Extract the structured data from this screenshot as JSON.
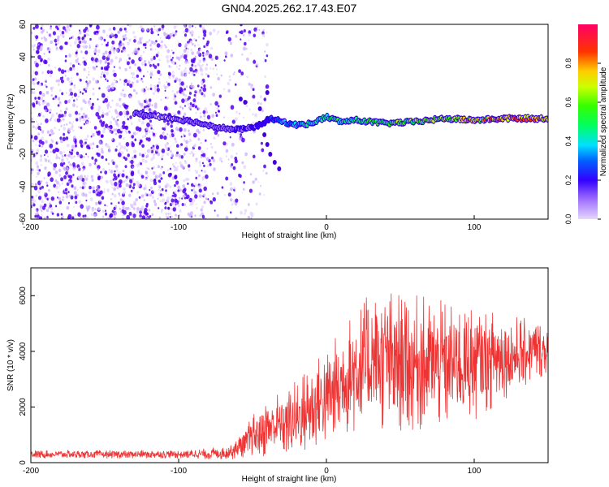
{
  "figure": {
    "title": "GN04.2025.262.17.43.E07"
  },
  "chart_data": [
    {
      "type": "heatmap",
      "title": "GN04.2025.262.17.43.E07",
      "xlabel": "Height of straight line (km)",
      "ylabel": "Frequency (Hz)",
      "xlim": [
        -200,
        150
      ],
      "ylim": [
        -60,
        60
      ],
      "xticks": [
        -200,
        -100,
        0,
        100
      ],
      "xtick_labels": [
        "-200",
        "-100",
        "0",
        "100"
      ],
      "yticks": [
        -60,
        -40,
        -20,
        0,
        20,
        40,
        60
      ],
      "ytick_labels": [
        "-60",
        "-40",
        "-20",
        "0",
        "20",
        "40",
        "60"
      ],
      "colorbar": {
        "label": "Normalized spectral amplitude",
        "range": [
          0,
          1
        ],
        "ticks": [
          0,
          0.2,
          0.4,
          0.6,
          0.8
        ],
        "tick_labels": [
          "0.0",
          "0.2",
          "0.4",
          "0.6",
          "0.8"
        ]
      },
      "ridge": {
        "x": [
          -130,
          -110,
          -90,
          -75,
          -62,
          -52,
          -45,
          -38,
          -30,
          -20,
          -10,
          0,
          10,
          20,
          40,
          60,
          80,
          100,
          120,
          150
        ],
        "freq": [
          5,
          3,
          0,
          -3,
          -5,
          -4,
          -2,
          2,
          0,
          -2,
          -1,
          3,
          0,
          1,
          -1,
          0,
          2,
          1,
          2,
          2
        ],
        "amplitude": [
          0.15,
          0.1,
          0.12,
          0.15,
          0.2,
          0.22,
          0.25,
          0.3,
          0.4,
          0.45,
          0.55,
          0.55,
          0.6,
          0.6,
          0.65,
          0.7,
          0.75,
          0.85,
          0.95,
          0.9
        ]
      },
      "noise_region_x": [
        -200,
        -60
      ],
      "noise_amplitude": 0.05
    },
    {
      "type": "line",
      "xlabel": "Height of straight line (km)",
      "ylabel": "SNR (10 * v/v)",
      "xlim": [
        -200,
        150
      ],
      "ylim": [
        0,
        7000
      ],
      "xticks": [
        -200,
        -100,
        0,
        100
      ],
      "xtick_labels": [
        "-200",
        "-100",
        "0",
        "100"
      ],
      "yticks": [
        0,
        2000,
        4000,
        6000
      ],
      "ytick_labels": [
        "0",
        "2000",
        "4000",
        "6000"
      ],
      "color": "#ee3333",
      "envelope": {
        "x": [
          -200,
          -150,
          -100,
          -80,
          -70,
          -60,
          -50,
          -40,
          -30,
          -20,
          -10,
          0,
          10,
          20,
          30,
          40,
          60,
          80,
          100,
          120,
          150
        ],
        "mean": [
          300,
          300,
          300,
          320,
          350,
          500,
          900,
          1300,
          1400,
          1600,
          2000,
          2300,
          2800,
          3300,
          3600,
          3700,
          3600,
          3500,
          3600,
          3800,
          4100
        ],
        "spread": [
          150,
          150,
          150,
          200,
          250,
          400,
          800,
          1100,
          1200,
          1400,
          1600,
          1800,
          2000,
          2300,
          2500,
          2600,
          2500,
          2300,
          2100,
          1600,
          900
        ]
      }
    }
  ]
}
